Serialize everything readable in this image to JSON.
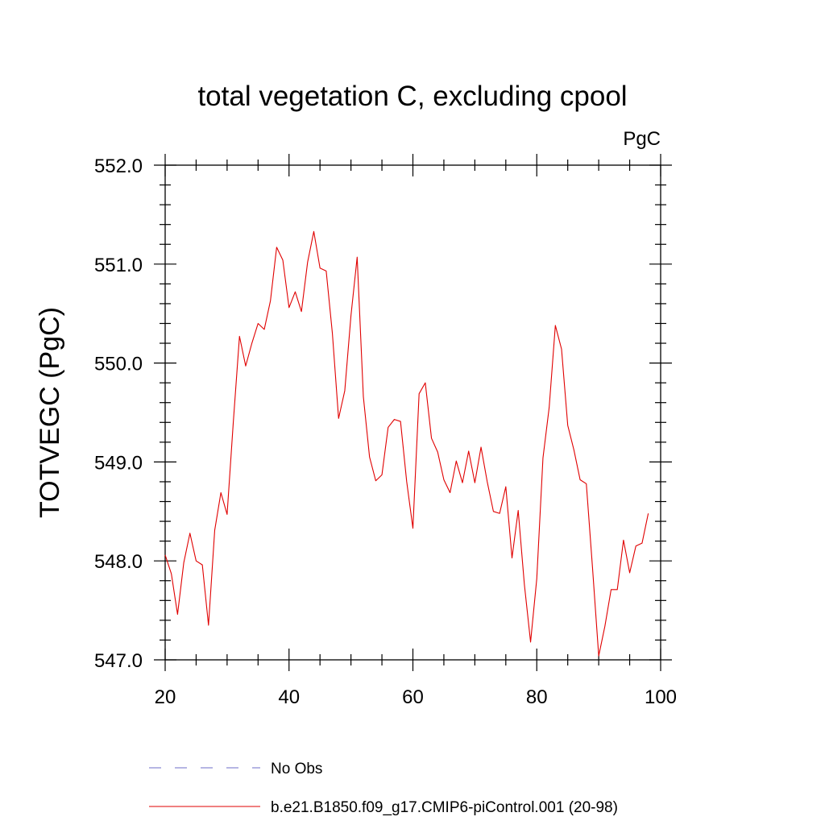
{
  "chart_data": {
    "type": "line",
    "title": "total vegetation C, excluding cpool",
    "units_label": "PgC",
    "xlabel": "",
    "ylabel": "TOTVEGC  (PgC)",
    "xlim": [
      20,
      100
    ],
    "ylim": [
      547.0,
      552.0
    ],
    "x_major_ticks": [
      20,
      40,
      60,
      80,
      100
    ],
    "x_minor_step": 5,
    "y_major_ticks": [
      547.0,
      548.0,
      549.0,
      550.0,
      551.0,
      552.0
    ],
    "y_minor_step": 0.2,
    "x_tick_labels": [
      "20",
      "40",
      "60",
      "80",
      "100"
    ],
    "y_tick_labels": [
      "547.0",
      "548.0",
      "549.0",
      "550.0",
      "551.0",
      "552.0"
    ],
    "grid": false,
    "legend_placement": "bottom",
    "legend": [
      {
        "label": "No Obs",
        "color": "#6e6ec8",
        "dash": true
      },
      {
        "label": "b.e21.B1850.f09_g17.CMIP6-piControl.001 (20-98)",
        "color": "#e00000",
        "dash": false
      }
    ],
    "series": [
      {
        "color": "#e00000",
        "x": [
          20,
          21,
          22,
          23,
          24,
          25,
          26,
          27,
          28,
          29,
          30,
          31,
          32,
          33,
          34,
          35,
          36,
          37,
          38,
          39,
          40,
          41,
          42,
          43,
          44,
          45,
          46,
          47,
          48,
          49,
          50,
          51,
          52,
          53,
          54,
          55,
          56,
          57,
          58,
          59,
          60,
          61,
          62,
          63,
          64,
          65,
          66,
          67,
          68,
          69,
          70,
          71,
          72,
          73,
          74,
          75,
          76,
          77,
          78,
          79,
          80,
          81,
          82,
          83,
          84,
          85,
          86,
          87,
          88,
          89,
          90,
          91,
          92,
          93,
          94,
          95,
          96,
          97,
          98
        ],
        "values": [
          548.06,
          547.87,
          547.46,
          547.98,
          548.28,
          548.0,
          547.96,
          547.35,
          548.31,
          548.69,
          548.47,
          549.4,
          550.27,
          549.97,
          550.2,
          550.4,
          550.34,
          550.63,
          551.17,
          551.04,
          550.56,
          550.72,
          550.52,
          551.02,
          551.33,
          550.96,
          550.93,
          550.3,
          549.44,
          549.72,
          550.48,
          551.07,
          549.66,
          549.05,
          548.81,
          548.87,
          549.35,
          549.43,
          549.41,
          548.8,
          548.33,
          549.69,
          549.8,
          549.24,
          549.1,
          548.82,
          548.69,
          549.01,
          548.79,
          549.11,
          548.79,
          549.15,
          548.8,
          548.5,
          548.48,
          548.75,
          548.03,
          548.51,
          547.76,
          547.18,
          547.82,
          549.04,
          549.55,
          550.38,
          550.14,
          549.37,
          549.12,
          548.82,
          548.78,
          547.93,
          547.04,
          547.34,
          547.71,
          547.71,
          548.21,
          547.88,
          548.15,
          548.18,
          548.48
        ]
      }
    ]
  }
}
